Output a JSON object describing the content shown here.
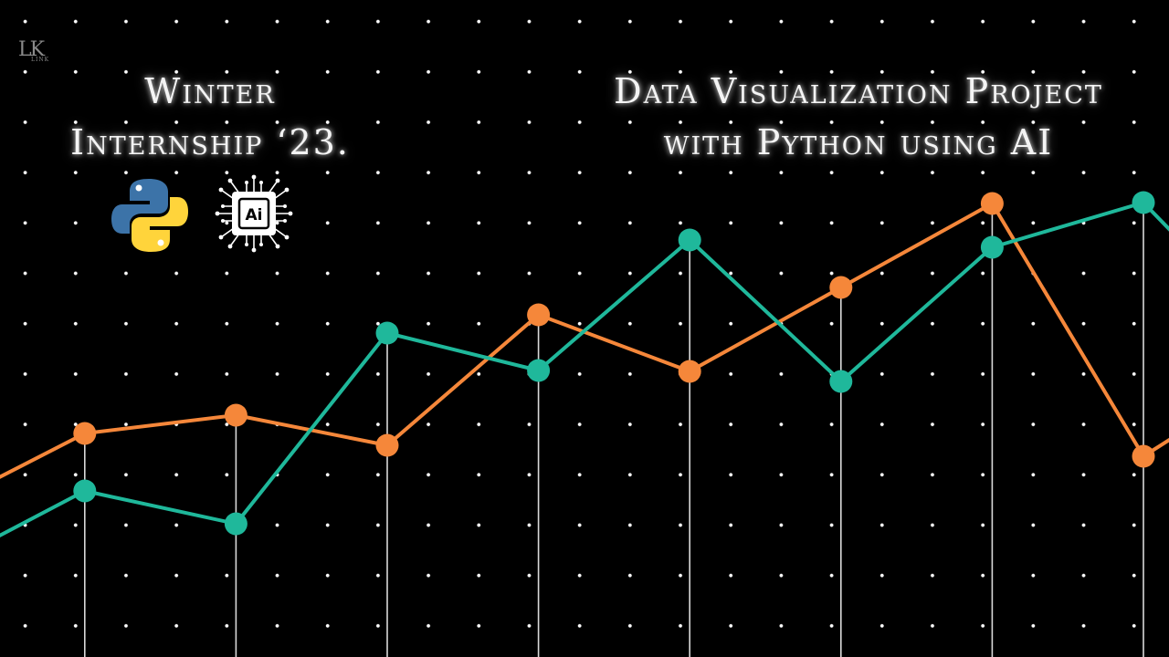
{
  "logo": {
    "text": "LK",
    "subtext": "LINK"
  },
  "title_left": {
    "line1": "Winter",
    "line2": "Internship ‘23."
  },
  "title_right": {
    "line1": "Data Visualization Project",
    "line2": "with Python using AI"
  },
  "icons": [
    "python-logo-icon",
    "ai-chip-icon"
  ],
  "ai_chip_label": "Ai",
  "colors": {
    "background": "#000000",
    "dots": "#ffffff",
    "orange": "#f5873a",
    "teal": "#1fb89b",
    "droplines": "#d9d9d9",
    "python_blue": "#3c73a8",
    "python_yellow": "#ffd43b"
  },
  "chart_data": {
    "type": "line",
    "x": [
      0,
      1,
      2,
      3,
      4,
      5,
      6,
      7,
      8,
      9
    ],
    "ylim": [
      0,
      720
    ],
    "grid": false,
    "legend": "none",
    "series": [
      {
        "color": "orange",
        "values": [
          160,
          245,
          265,
          232,
          375,
          313,
          405,
          497,
          220,
          325
        ]
      },
      {
        "color": "teal",
        "values": [
          95,
          182,
          146,
          355,
          314,
          457,
          302,
          449,
          498,
          327
        ]
      }
    ]
  }
}
